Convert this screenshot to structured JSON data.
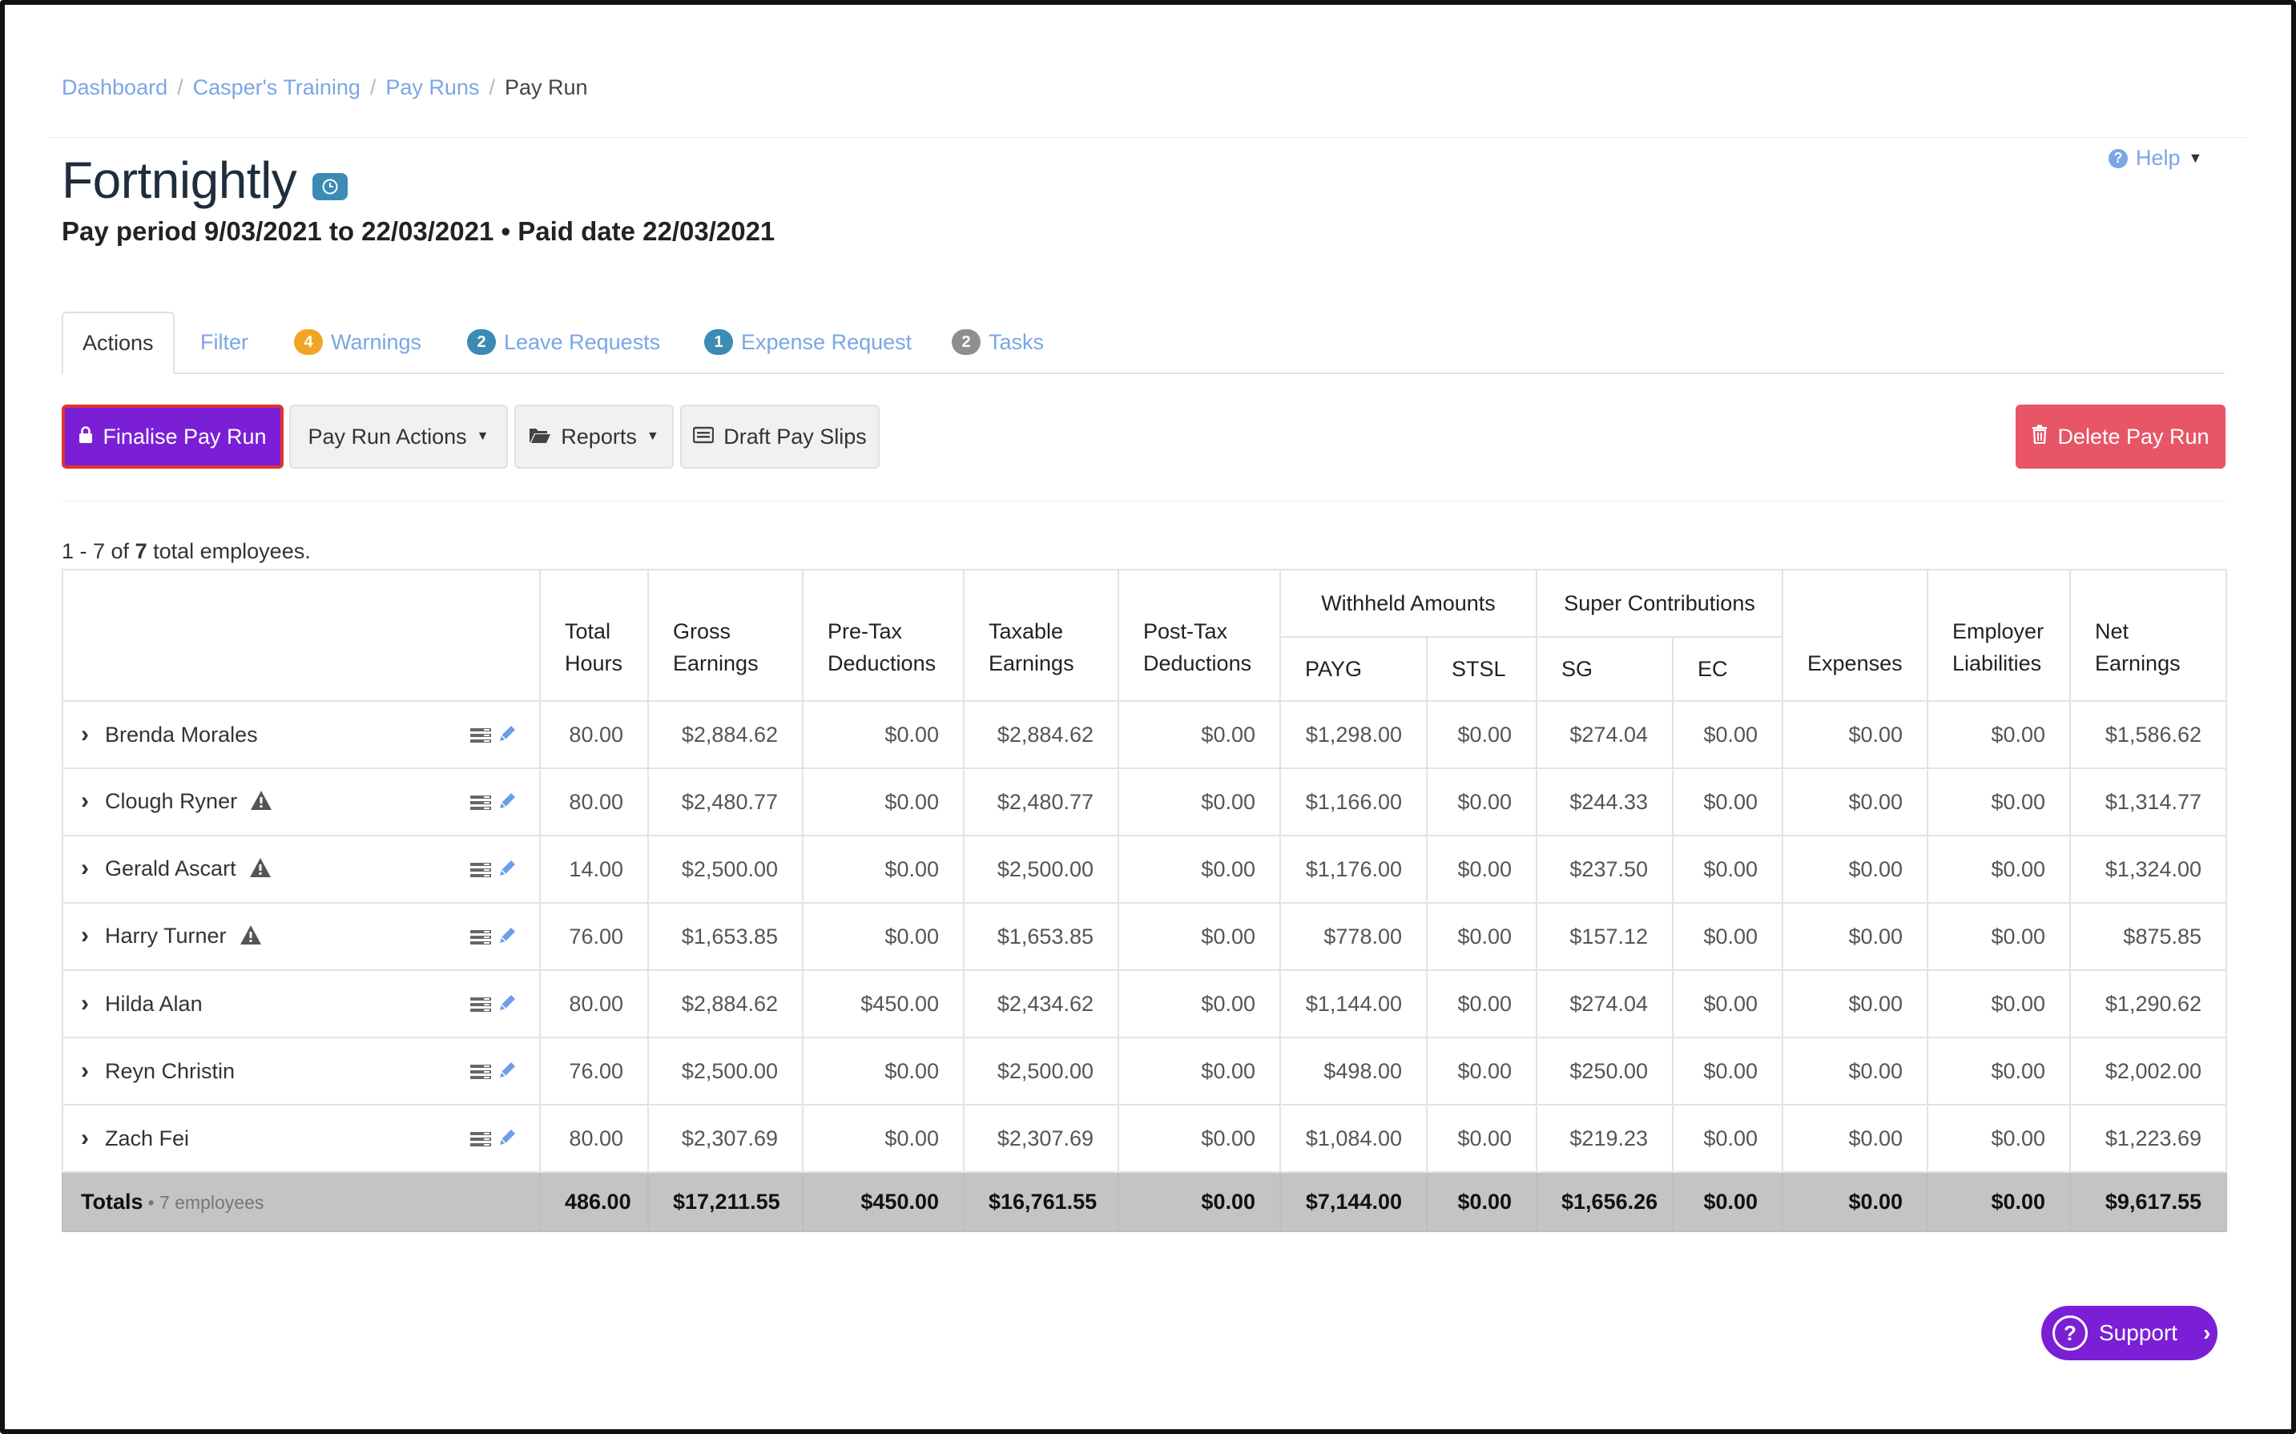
{
  "breadcrumb": {
    "items": [
      "Dashboard",
      "Casper's Training",
      "Pay Runs"
    ],
    "current": "Pay Run"
  },
  "header": {
    "title": "Fortnightly",
    "subtitle": "Pay period 9/03/2021 to 22/03/2021 • Paid date 22/03/2021",
    "help_label": "Help"
  },
  "tabs": [
    {
      "label": "Actions",
      "badge": null
    },
    {
      "label": "Filter",
      "badge": null
    },
    {
      "label": "Warnings",
      "badge": "4",
      "badge_color": "#f0a525"
    },
    {
      "label": "Leave Requests",
      "badge": "2",
      "badge_color": "#3b8bb5"
    },
    {
      "label": "Expense Request",
      "badge": "1",
      "badge_color": "#3b8bb5"
    },
    {
      "label": "Tasks",
      "badge": "2",
      "badge_color": "#8e8e8e"
    }
  ],
  "toolbar": {
    "finalise_label": "Finalise Pay Run",
    "pay_run_actions_label": "Pay Run Actions",
    "reports_label": "Reports",
    "draft_pay_slips_label": "Draft Pay Slips",
    "delete_label": "Delete Pay Run"
  },
  "summary": {
    "range": "1 - 7 of",
    "count": "7",
    "suffix": "total employees."
  },
  "table": {
    "headers": {
      "total_hours": [
        "Total",
        "Hours"
      ],
      "gross": [
        "Gross",
        "Earnings"
      ],
      "pretax": [
        "Pre-Tax",
        "Deductions"
      ],
      "taxable": [
        "Taxable",
        "Earnings"
      ],
      "posttax": [
        "Post-Tax",
        "Deductions"
      ],
      "withheld_group": "Withheld Amounts",
      "payg": "PAYG",
      "stsl": "STSL",
      "super_group": "Super Contributions",
      "sg": "SG",
      "ec": "EC",
      "expenses": "Expenses",
      "employer": [
        "Employer",
        "Liabilities"
      ],
      "net": [
        "Net",
        "Earnings"
      ]
    },
    "rows": [
      {
        "name": "Brenda Morales",
        "warning": false,
        "cells": [
          "80.00",
          "$2,884.62",
          "$0.00",
          "$2,884.62",
          "$0.00",
          "$1,298.00",
          "$0.00",
          "$274.04",
          "$0.00",
          "$0.00",
          "$0.00",
          "$1,586.62"
        ]
      },
      {
        "name": "Clough Ryner",
        "warning": true,
        "cells": [
          "80.00",
          "$2,480.77",
          "$0.00",
          "$2,480.77",
          "$0.00",
          "$1,166.00",
          "$0.00",
          "$244.33",
          "$0.00",
          "$0.00",
          "$0.00",
          "$1,314.77"
        ]
      },
      {
        "name": "Gerald Ascart",
        "warning": true,
        "cells": [
          "14.00",
          "$2,500.00",
          "$0.00",
          "$2,500.00",
          "$0.00",
          "$1,176.00",
          "$0.00",
          "$237.50",
          "$0.00",
          "$0.00",
          "$0.00",
          "$1,324.00"
        ]
      },
      {
        "name": "Harry Turner",
        "warning": true,
        "cells": [
          "76.00",
          "$1,653.85",
          "$0.00",
          "$1,653.85",
          "$0.00",
          "$778.00",
          "$0.00",
          "$157.12",
          "$0.00",
          "$0.00",
          "$0.00",
          "$875.85"
        ]
      },
      {
        "name": "Hilda Alan",
        "warning": false,
        "cells": [
          "80.00",
          "$2,884.62",
          "$450.00",
          "$2,434.62",
          "$0.00",
          "$1,144.00",
          "$0.00",
          "$274.04",
          "$0.00",
          "$0.00",
          "$0.00",
          "$1,290.62"
        ]
      },
      {
        "name": "Reyn Christin",
        "warning": false,
        "cells": [
          "76.00",
          "$2,500.00",
          "$0.00",
          "$2,500.00",
          "$0.00",
          "$498.00",
          "$0.00",
          "$250.00",
          "$0.00",
          "$0.00",
          "$0.00",
          "$2,002.00"
        ]
      },
      {
        "name": "Zach Fei",
        "warning": false,
        "cells": [
          "80.00",
          "$2,307.69",
          "$0.00",
          "$2,307.69",
          "$0.00",
          "$1,084.00",
          "$0.00",
          "$219.23",
          "$0.00",
          "$0.00",
          "$0.00",
          "$1,223.69"
        ]
      }
    ],
    "totals": {
      "label": "Totals",
      "note": "• 7 employees",
      "cells": [
        "486.00",
        "$17,211.55",
        "$450.00",
        "$16,761.55",
        "$0.00",
        "$7,144.00",
        "$0.00",
        "$1,656.26",
        "$0.00",
        "$0.00",
        "$0.00",
        "$9,617.55"
      ]
    }
  },
  "support": {
    "label": "Support"
  },
  "colors": {
    "primary": "#7a1fd6",
    "danger": "#e85566",
    "link": "#7aa6e6",
    "warning_badge": "#f0a525",
    "info_badge": "#3b8bb5"
  },
  "icons": {
    "lock": "lock-icon",
    "folder": "folder-open-icon",
    "payslip": "payslip-icon",
    "trash": "trash-icon",
    "warning": "warning-icon",
    "list": "list-icon",
    "edit": "pencil-icon",
    "clock": "clock-icon",
    "help": "question-circle-icon"
  }
}
